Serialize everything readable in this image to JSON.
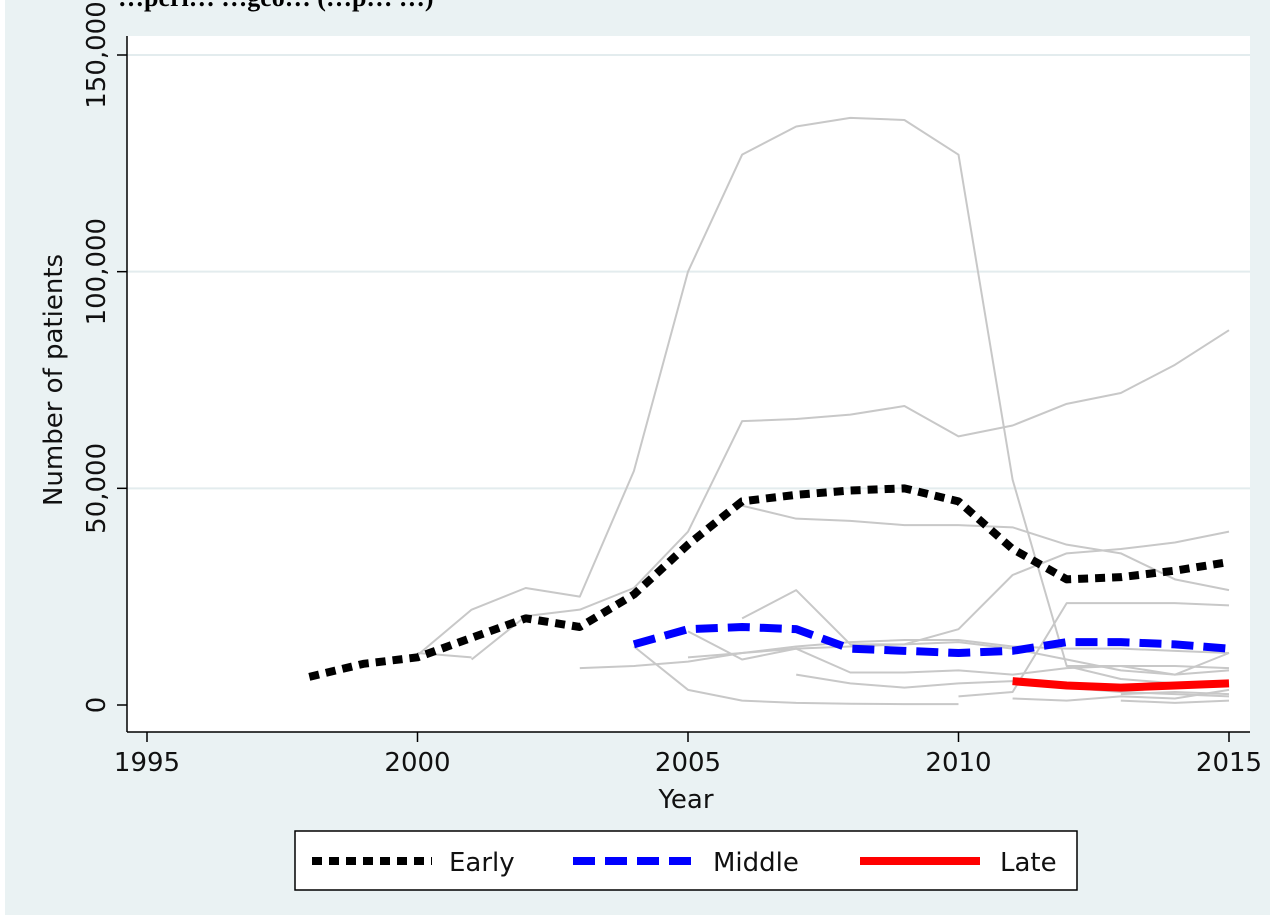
{
  "chart_data": {
    "type": "line",
    "title": "",
    "cut_off_header": "…peri… …geo… (…p… …)",
    "xlabel": "Year",
    "ylabel": "Number of patients",
    "xlim": [
      1995,
      2015
    ],
    "ylim": [
      0,
      150000
    ],
    "x_ticks": [
      1995,
      2000,
      2005,
      2010,
      2015
    ],
    "x_tick_labels": [
      "1995",
      "2000",
      "2005",
      "2010",
      "2015"
    ],
    "y_ticks": [
      0,
      50000,
      100000,
      150000
    ],
    "y_tick_labels": [
      "0",
      "50,000",
      "100,000",
      "150,000"
    ],
    "grid": true,
    "legend_position": "bottom",
    "colors": {
      "background_outer": "#eaf2f3",
      "plot_area": "#ffffff",
      "grid": "#e3ecee",
      "early": "#000000",
      "middle": "#0000ff",
      "late": "#ff0000",
      "background_series": "#c8c8c8"
    },
    "series": [
      {
        "name": "Early",
        "style": "dotted-thick",
        "color": "#000000",
        "x": [
          1998,
          1999,
          2000,
          2001,
          2002,
          2003,
          2004,
          2005,
          2006,
          2007,
          2008,
          2009,
          2010,
          2011,
          2012,
          2013,
          2014,
          2015
        ],
        "y": [
          6500,
          9500,
          11000,
          15500,
          20000,
          18000,
          25500,
          37000,
          47000,
          48500,
          49500,
          50000,
          47000,
          36000,
          29000,
          29500,
          31000,
          33000
        ]
      },
      {
        "name": "Middle",
        "style": "dashed-thick",
        "color": "#0000ff",
        "x": [
          2004,
          2005,
          2006,
          2007,
          2008,
          2009,
          2010,
          2011,
          2012,
          2013,
          2014,
          2015
        ],
        "y": [
          14000,
          17500,
          18000,
          17500,
          13000,
          12500,
          12000,
          12500,
          14500,
          14500,
          14000,
          13000
        ]
      },
      {
        "name": "Late",
        "style": "solid-thick",
        "color": "#ff0000",
        "x": [
          2011,
          2012,
          2013,
          2014,
          2015
        ],
        "y": [
          5500,
          4500,
          4000,
          4500,
          5000
        ]
      }
    ],
    "background_series": [
      {
        "x": [
          2000,
          2001,
          2002,
          2003,
          2004,
          2005,
          2006,
          2007,
          2008,
          2009,
          2010,
          2011,
          2012,
          2013,
          2014,
          2015
        ],
        "y": [
          11500,
          22000,
          27000,
          25000,
          54000,
          100000,
          127000,
          133500,
          135500,
          135000,
          127000,
          52000,
          9000,
          6000,
          5000,
          4500
        ]
      },
      {
        "x": [
          2001,
          2002,
          2003,
          2004,
          2005,
          2006,
          2007,
          2008,
          2009,
          2010,
          2011,
          2012,
          2013,
          2014,
          2015
        ],
        "y": [
          10500,
          20500,
          22000,
          27000,
          40000,
          65500,
          66000,
          67000,
          69000,
          62000,
          64500,
          69500,
          72000,
          78500,
          86500
        ]
      },
      {
        "x": [
          2000,
          2001
        ],
        "y": [
          12000,
          11000
        ]
      },
      {
        "x": [
          2003,
          2004,
          2005,
          2006,
          2007,
          2008,
          2009,
          2010,
          2011,
          2012,
          2013,
          2014,
          2015
        ],
        "y": [
          8500,
          9000,
          10000,
          12000,
          13000,
          13500,
          14000,
          17500,
          30000,
          35000,
          36000,
          37500,
          40000
        ]
      },
      {
        "x": [
          2006,
          2007,
          2008,
          2009,
          2010,
          2011,
          2012,
          2013,
          2014,
          2015
        ],
        "y": [
          46000,
          43000,
          42500,
          41500,
          41500,
          41000,
          37000,
          35000,
          29000,
          26500
        ]
      },
      {
        "x": [
          2004,
          2005,
          2006,
          2007,
          2008,
          2009,
          2010
        ],
        "y": [
          13500,
          3500,
          1000,
          500,
          300,
          200,
          200
        ]
      },
      {
        "x": [
          2005,
          2006,
          2007,
          2008,
          2009,
          2010,
          2011,
          2012,
          2013,
          2014,
          2015
        ],
        "y": [
          11000,
          12000,
          13500,
          14500,
          15000,
          15000,
          13500,
          13000,
          13000,
          12500,
          12000
        ]
      },
      {
        "x": [
          2006,
          2007,
          2008,
          2009,
          2010,
          2011,
          2012,
          2013,
          2014,
          2015
        ],
        "y": [
          20000,
          26500,
          14000,
          14000,
          14500,
          13000,
          10500,
          8000,
          7000,
          12000
        ]
      },
      {
        "x": [
          2005,
          2006,
          2007,
          2008,
          2009,
          2010,
          2011,
          2012,
          2013,
          2014,
          2015
        ],
        "y": [
          17000,
          10500,
          13000,
          7500,
          7500,
          8000,
          7000,
          8500,
          9000,
          9000,
          8500
        ]
      },
      {
        "x": [
          2007,
          2008,
          2009,
          2010,
          2011,
          2012,
          2013,
          2014,
          2015
        ],
        "y": [
          7000,
          5000,
          4000,
          5000,
          5500,
          4000,
          3000,
          2500,
          2000
        ]
      },
      {
        "x": [
          2010,
          2011,
          2012,
          2013,
          2014,
          2015
        ],
        "y": [
          2000,
          3000,
          23500,
          23500,
          23500,
          23000
        ]
      },
      {
        "x": [
          2011,
          2012,
          2013,
          2014,
          2015
        ],
        "y": [
          1500,
          1000,
          2000,
          1500,
          3500
        ]
      },
      {
        "x": [
          2012,
          2013,
          2014,
          2015
        ],
        "y": [
          9000,
          9000,
          7000,
          8000
        ]
      },
      {
        "x": [
          2013,
          2014,
          2015
        ],
        "y": [
          1000,
          500,
          1000
        ]
      },
      {
        "x": [
          2013,
          2014,
          2015
        ],
        "y": [
          2500,
          3000,
          2500
        ]
      }
    ]
  }
}
